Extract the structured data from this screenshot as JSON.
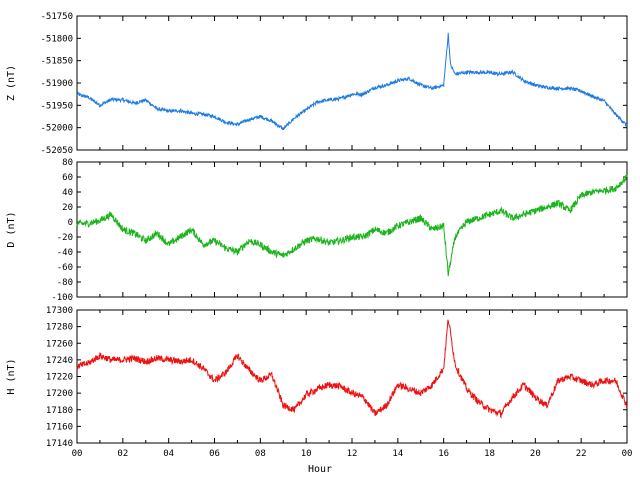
{
  "chart_data": [
    {
      "type": "line",
      "ylabel": "Z (nT)",
      "xlabel": "",
      "color": "#1f7be0",
      "ylim": [
        -52050,
        -51750
      ],
      "yticks": [
        -51750,
        -51800,
        -51850,
        -51900,
        -51950,
        -52000,
        -52050
      ],
      "xlim": [
        0,
        24
      ],
      "series": [
        {
          "x": [
            0,
            0.5,
            1,
            1.5,
            2,
            2.5,
            3,
            3.5,
            4,
            4.5,
            5,
            5.5,
            6,
            6.5,
            7,
            7.5,
            8,
            8.5,
            9,
            9.5,
            10,
            10.5,
            11,
            11.5,
            12,
            12.5,
            13,
            13.5,
            14,
            14.5,
            15,
            15.5,
            16,
            16.2,
            16.3,
            16.5,
            17,
            17.5,
            18,
            18.5,
            19,
            19.5,
            20,
            20.5,
            21,
            21.5,
            22,
            22.5,
            23,
            23.5,
            24
          ],
          "values": [
            -51925,
            -51932,
            -51950,
            -51937,
            -51938,
            -51945,
            -51938,
            -51958,
            -51963,
            -51962,
            -51968,
            -51970,
            -51975,
            -51988,
            -51993,
            -51982,
            -51975,
            -51985,
            -52003,
            -51978,
            -51960,
            -51942,
            -51938,
            -51935,
            -51925,
            -51925,
            -51910,
            -51905,
            -51895,
            -51890,
            -51905,
            -51912,
            -51905,
            -51790,
            -51860,
            -51880,
            -51876,
            -51876,
            -51877,
            -51880,
            -51875,
            -51895,
            -51905,
            -51910,
            -51912,
            -51912,
            -51918,
            -51930,
            -51940,
            -51970,
            -51995
          ]
        }
      ]
    },
    {
      "type": "line",
      "ylabel": "D (nT)",
      "xlabel": "",
      "color": "#1cb41c",
      "ylim": [
        -100,
        80
      ],
      "yticks": [
        80,
        60,
        40,
        20,
        0,
        -20,
        -40,
        -60,
        -80,
        -100
      ],
      "xlim": [
        0,
        24
      ],
      "series": [
        {
          "x": [
            0,
            0.5,
            1,
            1.5,
            2,
            2.5,
            3,
            3.5,
            4,
            4.5,
            5,
            5.5,
            6,
            6.5,
            7,
            7.5,
            8,
            8.5,
            9,
            9.5,
            10,
            10.5,
            11,
            11.5,
            12,
            12.5,
            13,
            13.5,
            14,
            14.5,
            15,
            15.5,
            16,
            16.2,
            16.5,
            17,
            17.5,
            18,
            18.5,
            19,
            19.5,
            20,
            20.5,
            21,
            21.5,
            22,
            22.5,
            23,
            23.5,
            24
          ],
          "values": [
            -2,
            -2,
            2,
            10,
            -10,
            -15,
            -25,
            -15,
            -30,
            -20,
            -10,
            -30,
            -25,
            -35,
            -40,
            -25,
            -30,
            -40,
            -45,
            -35,
            -25,
            -22,
            -28,
            -25,
            -20,
            -20,
            -10,
            -15,
            -5,
            0,
            5,
            -10,
            -5,
            -70,
            -20,
            0,
            5,
            10,
            15,
            5,
            10,
            15,
            20,
            25,
            15,
            35,
            40,
            42,
            45,
            60
          ]
        }
      ]
    },
    {
      "type": "line",
      "ylabel": "H (nT)",
      "xlabel": "Hour",
      "color": "#ee1111",
      "ylim": [
        17140,
        17300
      ],
      "yticks": [
        17300,
        17280,
        17260,
        17240,
        17220,
        17200,
        17180,
        17160,
        17140
      ],
      "xlim": [
        0,
        24
      ],
      "xticks": [
        "00",
        "02",
        "04",
        "06",
        "08",
        "10",
        "12",
        "14",
        "16",
        "18",
        "20",
        "22",
        "00"
      ],
      "series": [
        {
          "x": [
            0,
            0.5,
            1,
            1.5,
            2,
            2.5,
            3,
            3.5,
            4,
            4.5,
            5,
            5.5,
            6,
            6.5,
            7,
            7.5,
            8,
            8.5,
            9,
            9.5,
            10,
            10.5,
            11,
            11.5,
            12,
            12.5,
            13,
            13.5,
            14,
            14.5,
            15,
            15.5,
            16,
            16.2,
            16.5,
            17,
            17.5,
            18,
            18.5,
            19,
            19.5,
            20,
            20.5,
            21,
            21.5,
            22,
            22.5,
            23,
            23.5,
            24
          ],
          "values": [
            17232,
            17236,
            17245,
            17240,
            17240,
            17242,
            17238,
            17242,
            17240,
            17238,
            17240,
            17230,
            17215,
            17225,
            17245,
            17228,
            17215,
            17222,
            17185,
            17180,
            17198,
            17205,
            17210,
            17208,
            17200,
            17195,
            17175,
            17185,
            17210,
            17205,
            17200,
            17210,
            17230,
            17290,
            17235,
            17205,
            17190,
            17180,
            17175,
            17195,
            17210,
            17195,
            17185,
            17215,
            17220,
            17215,
            17210,
            17215,
            17215,
            17185
          ]
        }
      ]
    }
  ]
}
